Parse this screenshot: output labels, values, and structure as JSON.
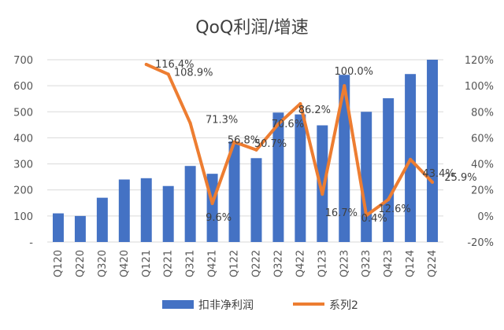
{
  "chart_data": {
    "type": "bar+line",
    "title": "QoQ利润/增速",
    "categories": [
      "Q120",
      "Q220",
      "Q320",
      "Q420",
      "Q121",
      "Q221",
      "Q321",
      "Q421",
      "Q122",
      "Q222",
      "Q322",
      "Q422",
      "Q123",
      "Q223",
      "Q323",
      "Q423",
      "Q124",
      "Q224"
    ],
    "series": [
      {
        "name": "扣非净利润",
        "type": "bar",
        "axis": "left",
        "color": "#4472C4",
        "values": [
          110,
          100,
          170,
          240,
          245,
          215,
          292,
          262,
          386,
          322,
          497,
          490,
          448,
          642,
          500,
          552,
          645,
          700
        ]
      },
      {
        "name": "系列2",
        "type": "line",
        "axis": "right",
        "color": "#ED7D31",
        "values": [
          null,
          null,
          null,
          null,
          116.4,
          108.9,
          71.3,
          9.6,
          56.8,
          50.7,
          70.6,
          86.2,
          16.7,
          100.0,
          0.4,
          12.6,
          43.4,
          25.9
        ],
        "labels": [
          "",
          "",
          "",
          "",
          "116.4%",
          "108.9%",
          "71.3%",
          "9.6%",
          "56.8%",
          "50.7%",
          "70.6%",
          "86.2%",
          "16.7%",
          "100.0%",
          "0.4%",
          "12.6%",
          "43.4%",
          "25.9%"
        ]
      }
    ],
    "y_left": {
      "min": 0,
      "max": 700,
      "ticks": [
        "-",
        "100",
        "200",
        "300",
        "400",
        "500",
        "600",
        "700"
      ]
    },
    "y_right": {
      "min": -20,
      "max": 120,
      "ticks": [
        "-20%",
        "0%",
        "20%",
        "40%",
        "60%",
        "80%",
        "100%",
        "120%"
      ]
    },
    "grid": true,
    "legend_position": "bottom"
  }
}
